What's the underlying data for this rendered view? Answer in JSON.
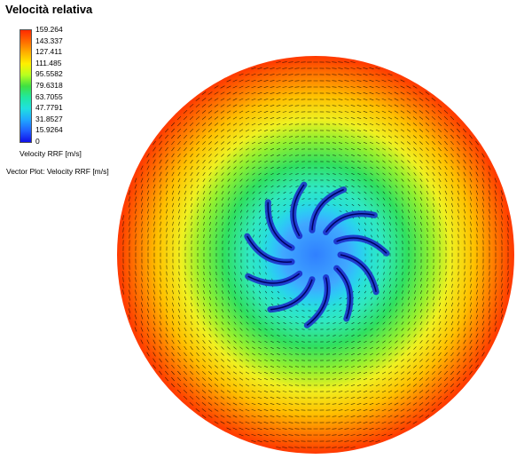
{
  "title": "Velocità relativa",
  "legend": {
    "ticks": [
      "159.264",
      "143.337",
      "127.411",
      "111.485",
      "95.5582",
      "79.6318",
      "63.7055",
      "47.7791",
      "31.8527",
      "15.9264",
      "0"
    ],
    "unit_label": "Velocity RRF [m/s]"
  },
  "vector_plot_label": "Vector Plot: Velocity RRF [m/s]",
  "colors": {
    "max": "#ff2a00",
    "high": "#ffd000",
    "mid": "#40e040",
    "low": "#20d8e8",
    "min": "#1010e8",
    "vector": "#000000"
  }
}
